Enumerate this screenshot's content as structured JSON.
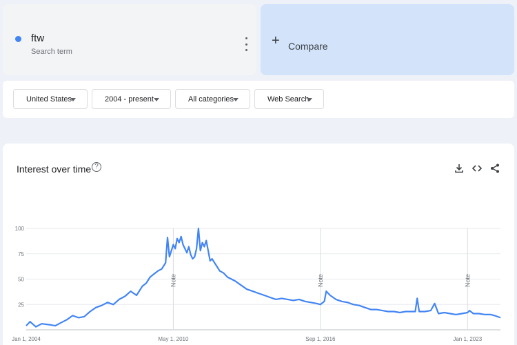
{
  "search_term": {
    "name": "ftw",
    "subtitle": "Search term",
    "color": "#4285f4"
  },
  "compare": {
    "plus": "+",
    "label": "Compare"
  },
  "filters": [
    {
      "label": "United States"
    },
    {
      "label": "2004 - present"
    },
    {
      "label": "All categories"
    },
    {
      "label": "Web Search"
    }
  ],
  "chart_card": {
    "title": "Interest over time",
    "help": "?",
    "actions": [
      "download-icon",
      "embed-icon",
      "share-icon"
    ]
  },
  "chart_data": {
    "type": "line",
    "title": "Interest over time",
    "xlabel": "",
    "ylabel": "",
    "x_range": [
      "2004-01",
      "2024-06"
    ],
    "ylim": [
      0,
      100
    ],
    "y_ticks": [
      {
        "value": 25,
        "label": "25"
      },
      {
        "value": 50,
        "label": "50"
      },
      {
        "value": 75,
        "label": "75"
      },
      {
        "value": 100,
        "label": "100"
      }
    ],
    "x_ticks": [
      {
        "date": "2004-01",
        "label": "Jan 1, 2004"
      },
      {
        "date": "2010-05",
        "label": "May 1, 2010"
      },
      {
        "date": "2016-09",
        "label": "Sep 1, 2016"
      },
      {
        "date": "2023-01",
        "label": "Jan 1, 2023"
      }
    ],
    "notes": [
      {
        "date": "2010-05",
        "label": "Note"
      },
      {
        "date": "2016-09",
        "label": "Note"
      },
      {
        "date": "2023-01",
        "label": "Note"
      }
    ],
    "grid": true,
    "legend": "none",
    "series": [
      {
        "color": "#4285f4",
        "points": [
          [
            "2004-01",
            4
          ],
          [
            "2004-03",
            8
          ],
          [
            "2004-06",
            3
          ],
          [
            "2004-09",
            6
          ],
          [
            "2005-01",
            5
          ],
          [
            "2005-04",
            4
          ],
          [
            "2005-07",
            7
          ],
          [
            "2005-10",
            10
          ],
          [
            "2006-01",
            14
          ],
          [
            "2006-04",
            12
          ],
          [
            "2006-07",
            13
          ],
          [
            "2006-10",
            18
          ],
          [
            "2007-01",
            22
          ],
          [
            "2007-04",
            24
          ],
          [
            "2007-07",
            27
          ],
          [
            "2007-10",
            25
          ],
          [
            "2008-01",
            30
          ],
          [
            "2008-04",
            33
          ],
          [
            "2008-07",
            38
          ],
          [
            "2008-10",
            34
          ],
          [
            "2009-01",
            43
          ],
          [
            "2009-03",
            46
          ],
          [
            "2009-05",
            52
          ],
          [
            "2009-07",
            55
          ],
          [
            "2009-09",
            58
          ],
          [
            "2009-11",
            60
          ],
          [
            "2009-12",
            63
          ],
          [
            "2010-01",
            66
          ],
          [
            "2010-02",
            91
          ],
          [
            "2010-03",
            72
          ],
          [
            "2010-04",
            78
          ],
          [
            "2010-05",
            84
          ],
          [
            "2010-06",
            80
          ],
          [
            "2010-07",
            90
          ],
          [
            "2010-08",
            86
          ],
          [
            "2010-09",
            92
          ],
          [
            "2010-10",
            84
          ],
          [
            "2010-11",
            80
          ],
          [
            "2010-12",
            76
          ],
          [
            "2011-01",
            82
          ],
          [
            "2011-02",
            74
          ],
          [
            "2011-03",
            70
          ],
          [
            "2011-04",
            72
          ],
          [
            "2011-05",
            80
          ],
          [
            "2011-06",
            100
          ],
          [
            "2011-07",
            78
          ],
          [
            "2011-08",
            86
          ],
          [
            "2011-09",
            82
          ],
          [
            "2011-10",
            88
          ],
          [
            "2011-11",
            78
          ],
          [
            "2011-12",
            68
          ],
          [
            "2012-01",
            70
          ],
          [
            "2012-03",
            64
          ],
          [
            "2012-05",
            58
          ],
          [
            "2012-07",
            56
          ],
          [
            "2012-09",
            52
          ],
          [
            "2012-11",
            50
          ],
          [
            "2013-01",
            48
          ],
          [
            "2013-04",
            44
          ],
          [
            "2013-07",
            40
          ],
          [
            "2013-10",
            38
          ],
          [
            "2014-01",
            36
          ],
          [
            "2014-04",
            34
          ],
          [
            "2014-07",
            32
          ],
          [
            "2014-10",
            30
          ],
          [
            "2015-01",
            31
          ],
          [
            "2015-04",
            30
          ],
          [
            "2015-07",
            29
          ],
          [
            "2015-10",
            30
          ],
          [
            "2016-01",
            28
          ],
          [
            "2016-04",
            27
          ],
          [
            "2016-07",
            26
          ],
          [
            "2016-09",
            25
          ],
          [
            "2016-11",
            28
          ],
          [
            "2016-12",
            38
          ],
          [
            "2017-02",
            34
          ],
          [
            "2017-05",
            30
          ],
          [
            "2017-08",
            28
          ],
          [
            "2017-11",
            27
          ],
          [
            "2018-02",
            25
          ],
          [
            "2018-05",
            24
          ],
          [
            "2018-08",
            22
          ],
          [
            "2018-11",
            20
          ],
          [
            "2019-02",
            20
          ],
          [
            "2019-05",
            19
          ],
          [
            "2019-08",
            18
          ],
          [
            "2019-11",
            18
          ],
          [
            "2020-02",
            17
          ],
          [
            "2020-05",
            18
          ],
          [
            "2020-08",
            18
          ],
          [
            "2020-10",
            18
          ],
          [
            "2020-11",
            31
          ],
          [
            "2020-12",
            18
          ],
          [
            "2021-03",
            18
          ],
          [
            "2021-06",
            19
          ],
          [
            "2021-08",
            26
          ],
          [
            "2021-10",
            16
          ],
          [
            "2022-01",
            17
          ],
          [
            "2022-04",
            16
          ],
          [
            "2022-07",
            15
          ],
          [
            "2022-10",
            16
          ],
          [
            "2023-01",
            17
          ],
          [
            "2023-02",
            19
          ],
          [
            "2023-04",
            16
          ],
          [
            "2023-07",
            16
          ],
          [
            "2023-10",
            15
          ],
          [
            "2024-01",
            15
          ],
          [
            "2024-03",
            14
          ],
          [
            "2024-06",
            12
          ]
        ]
      }
    ]
  }
}
